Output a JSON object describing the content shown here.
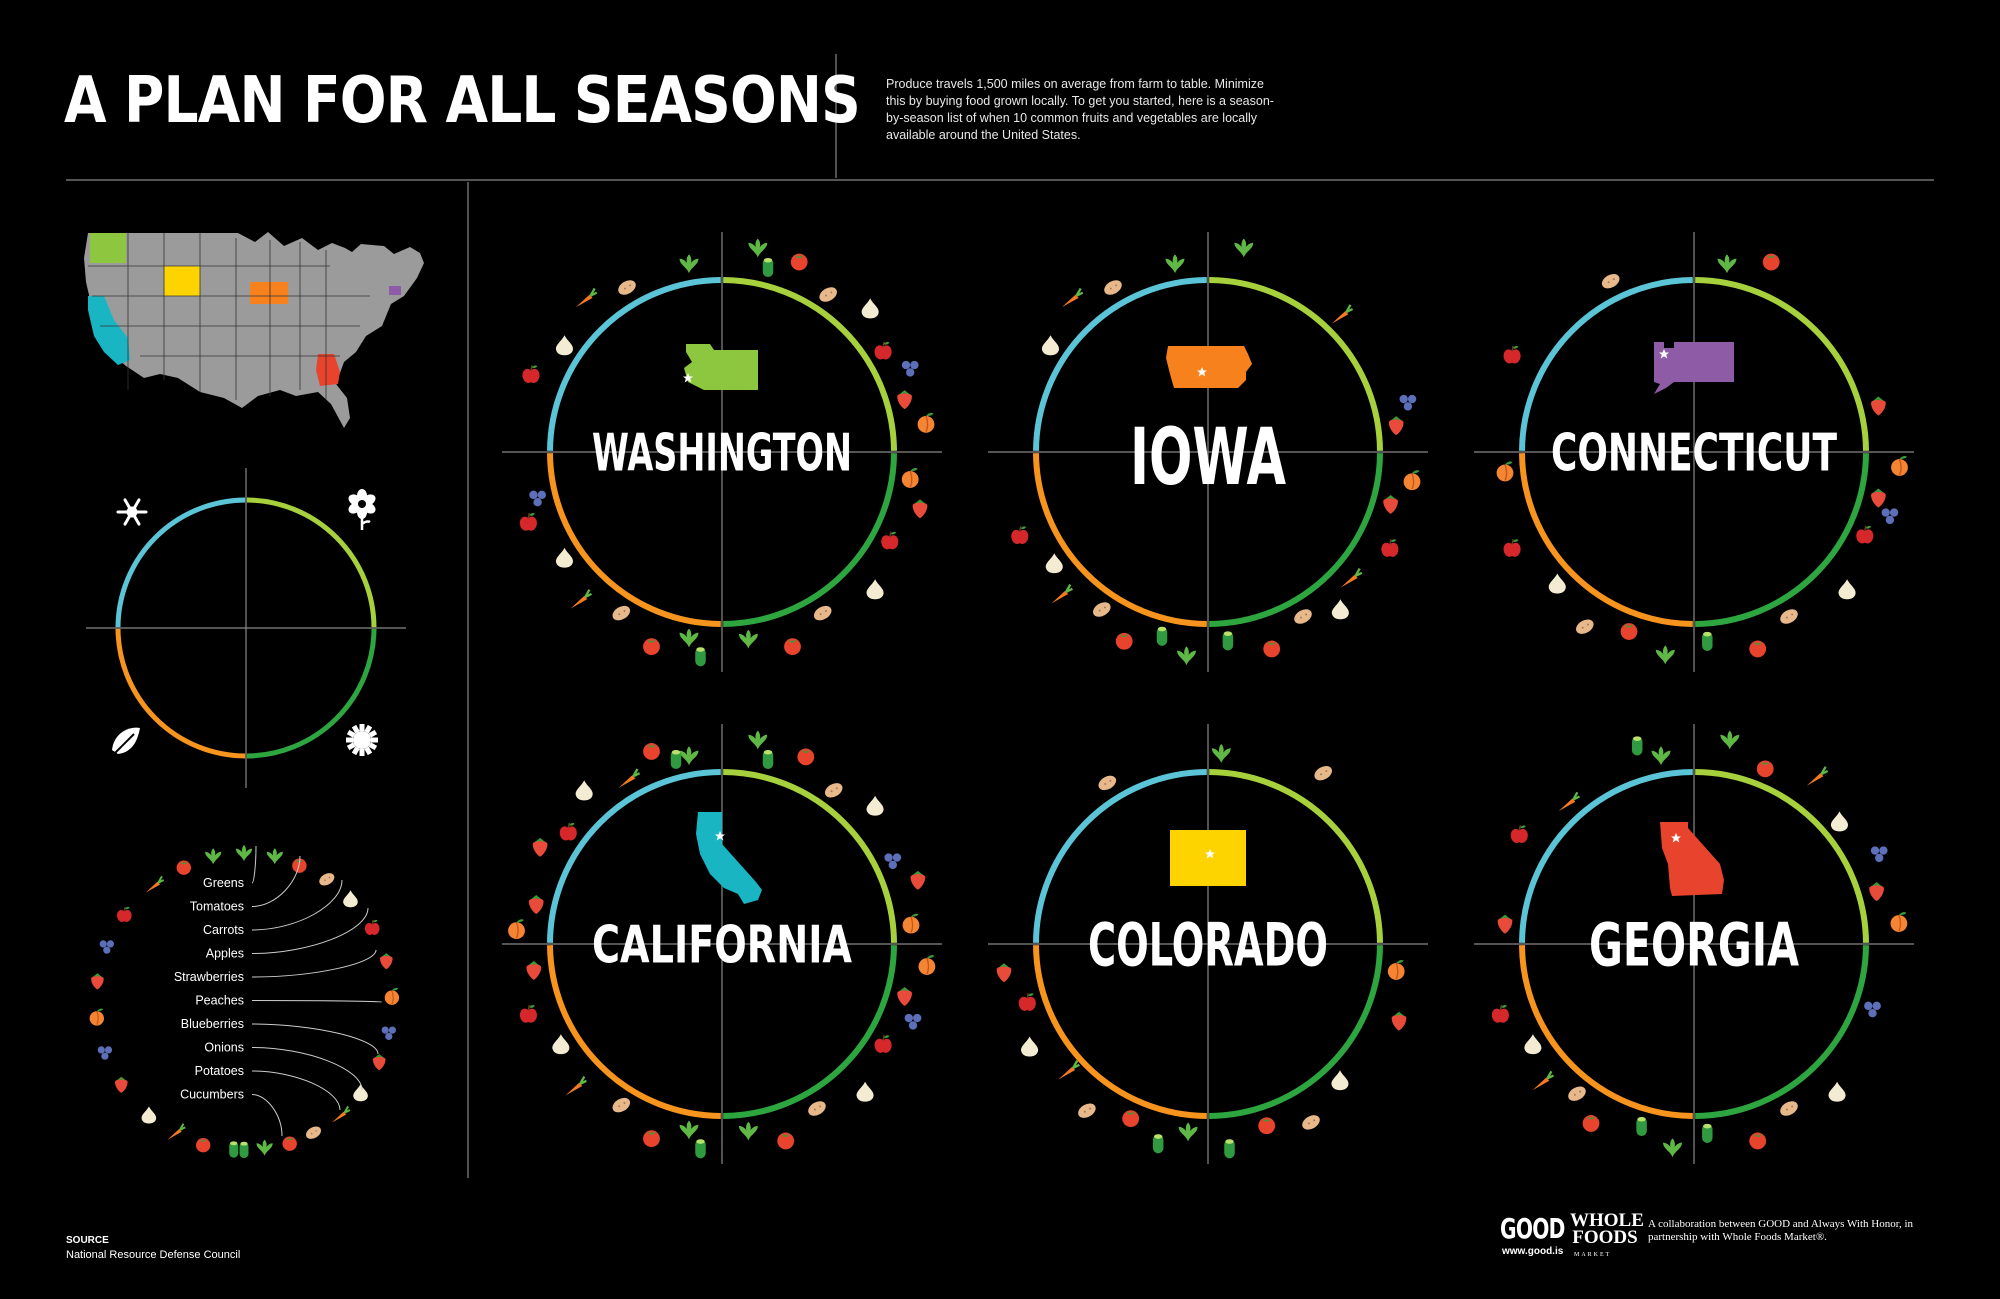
{
  "title": "A PLAN FOR ALL SEASONS",
  "intro": "Produce travels 1,500 miles on average from farm to table. Minimize this by buying food grown locally. To get you started, here is a season-by-season list of when 10 common fruits and vegetables are locally available around the United States.",
  "colors": {
    "winter": "#5bc4d6",
    "spring": "#a6d13c",
    "summer": "#2ea640",
    "fall": "#f7941d",
    "greens": "#5fb845",
    "tomatoes": "#e8432c",
    "carrots": "#f47920",
    "apples": "#d6282b",
    "strawberries": "#e84b3a",
    "peaches": "#f58433",
    "blueberries": "#5c6fb8",
    "onions": "#f4ecd2",
    "potatoes": "#e7b88a",
    "cucumbers": "#2f9a3f",
    "washington": "#8dc63f",
    "iowa": "#f7821d",
    "connecticut": "#8e5ba6",
    "california": "#1ab5c3",
    "colorado": "#fed400",
    "georgia": "#e8432c",
    "map": "#9b9b9b"
  },
  "legend_icons": {
    "winter": "snowflake-icon",
    "spring": "flower-icon",
    "summer": "sun-icon",
    "fall": "leaf-icon"
  },
  "produce_labels": [
    "Greens",
    "Tomatoes",
    "Carrots",
    "Apples",
    "Strawberries",
    "Peaches",
    "Blueberries",
    "Onions",
    "Potatoes",
    "Cucumbers"
  ],
  "states": [
    {
      "key": "washington",
      "name": "WASHINGTON"
    },
    {
      "key": "iowa",
      "name": "IOWA"
    },
    {
      "key": "connecticut",
      "name": "CONNECTICUT"
    },
    {
      "key": "california",
      "name": "CALIFORNIA"
    },
    {
      "key": "colorado",
      "name": "COLORADO"
    },
    {
      "key": "georgia",
      "name": "GEORGIA"
    }
  ],
  "source": {
    "label": "SOURCE",
    "text": "National Resource Defense Council"
  },
  "credits": {
    "good": "GOOD",
    "good_url": "www.good.is",
    "whole_foods": "WHOLE FOODS",
    "whole_foods_sub": "MARKET",
    "collab": "A collaboration between GOOD and Always With Honor, in partnership with Whole Foods Market®."
  }
}
